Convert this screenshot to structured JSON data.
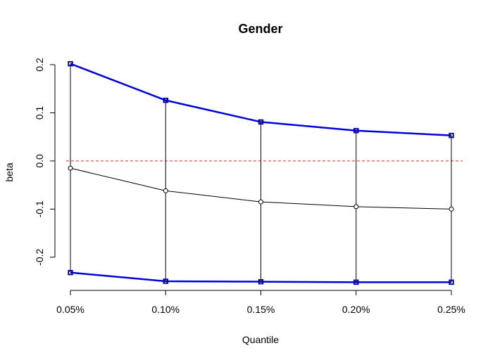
{
  "chart_data": {
    "type": "line",
    "title": "Gender",
    "xlabel": "Quantile",
    "ylabel": "beta",
    "categories": [
      "0.05%",
      "0.10%",
      "0.15%",
      "0.20%",
      "0.25%"
    ],
    "ylim": [
      -0.27,
      0.21
    ],
    "yticks": [
      -0.2,
      -0.1,
      0.0,
      0.1,
      0.2
    ],
    "ytick_labels": [
      "-0.2",
      "-0.1",
      "0.0",
      "0.1",
      "0.2"
    ],
    "grid": false,
    "reference_line": {
      "y": 0.0,
      "color": "#cc3333",
      "style": "dashed"
    },
    "series": [
      {
        "role": "upper",
        "color": "#0000dd",
        "marker": "square",
        "values": [
          0.202,
          0.126,
          0.081,
          0.063,
          0.053
        ]
      },
      {
        "role": "estimate",
        "color": "#000000",
        "marker": "circle",
        "values": [
          -0.015,
          -0.062,
          -0.085,
          -0.095,
          -0.1
        ]
      },
      {
        "role": "lower",
        "color": "#0000dd",
        "marker": "square",
        "values": [
          -0.232,
          -0.25,
          -0.251,
          -0.252,
          -0.252
        ]
      }
    ]
  }
}
